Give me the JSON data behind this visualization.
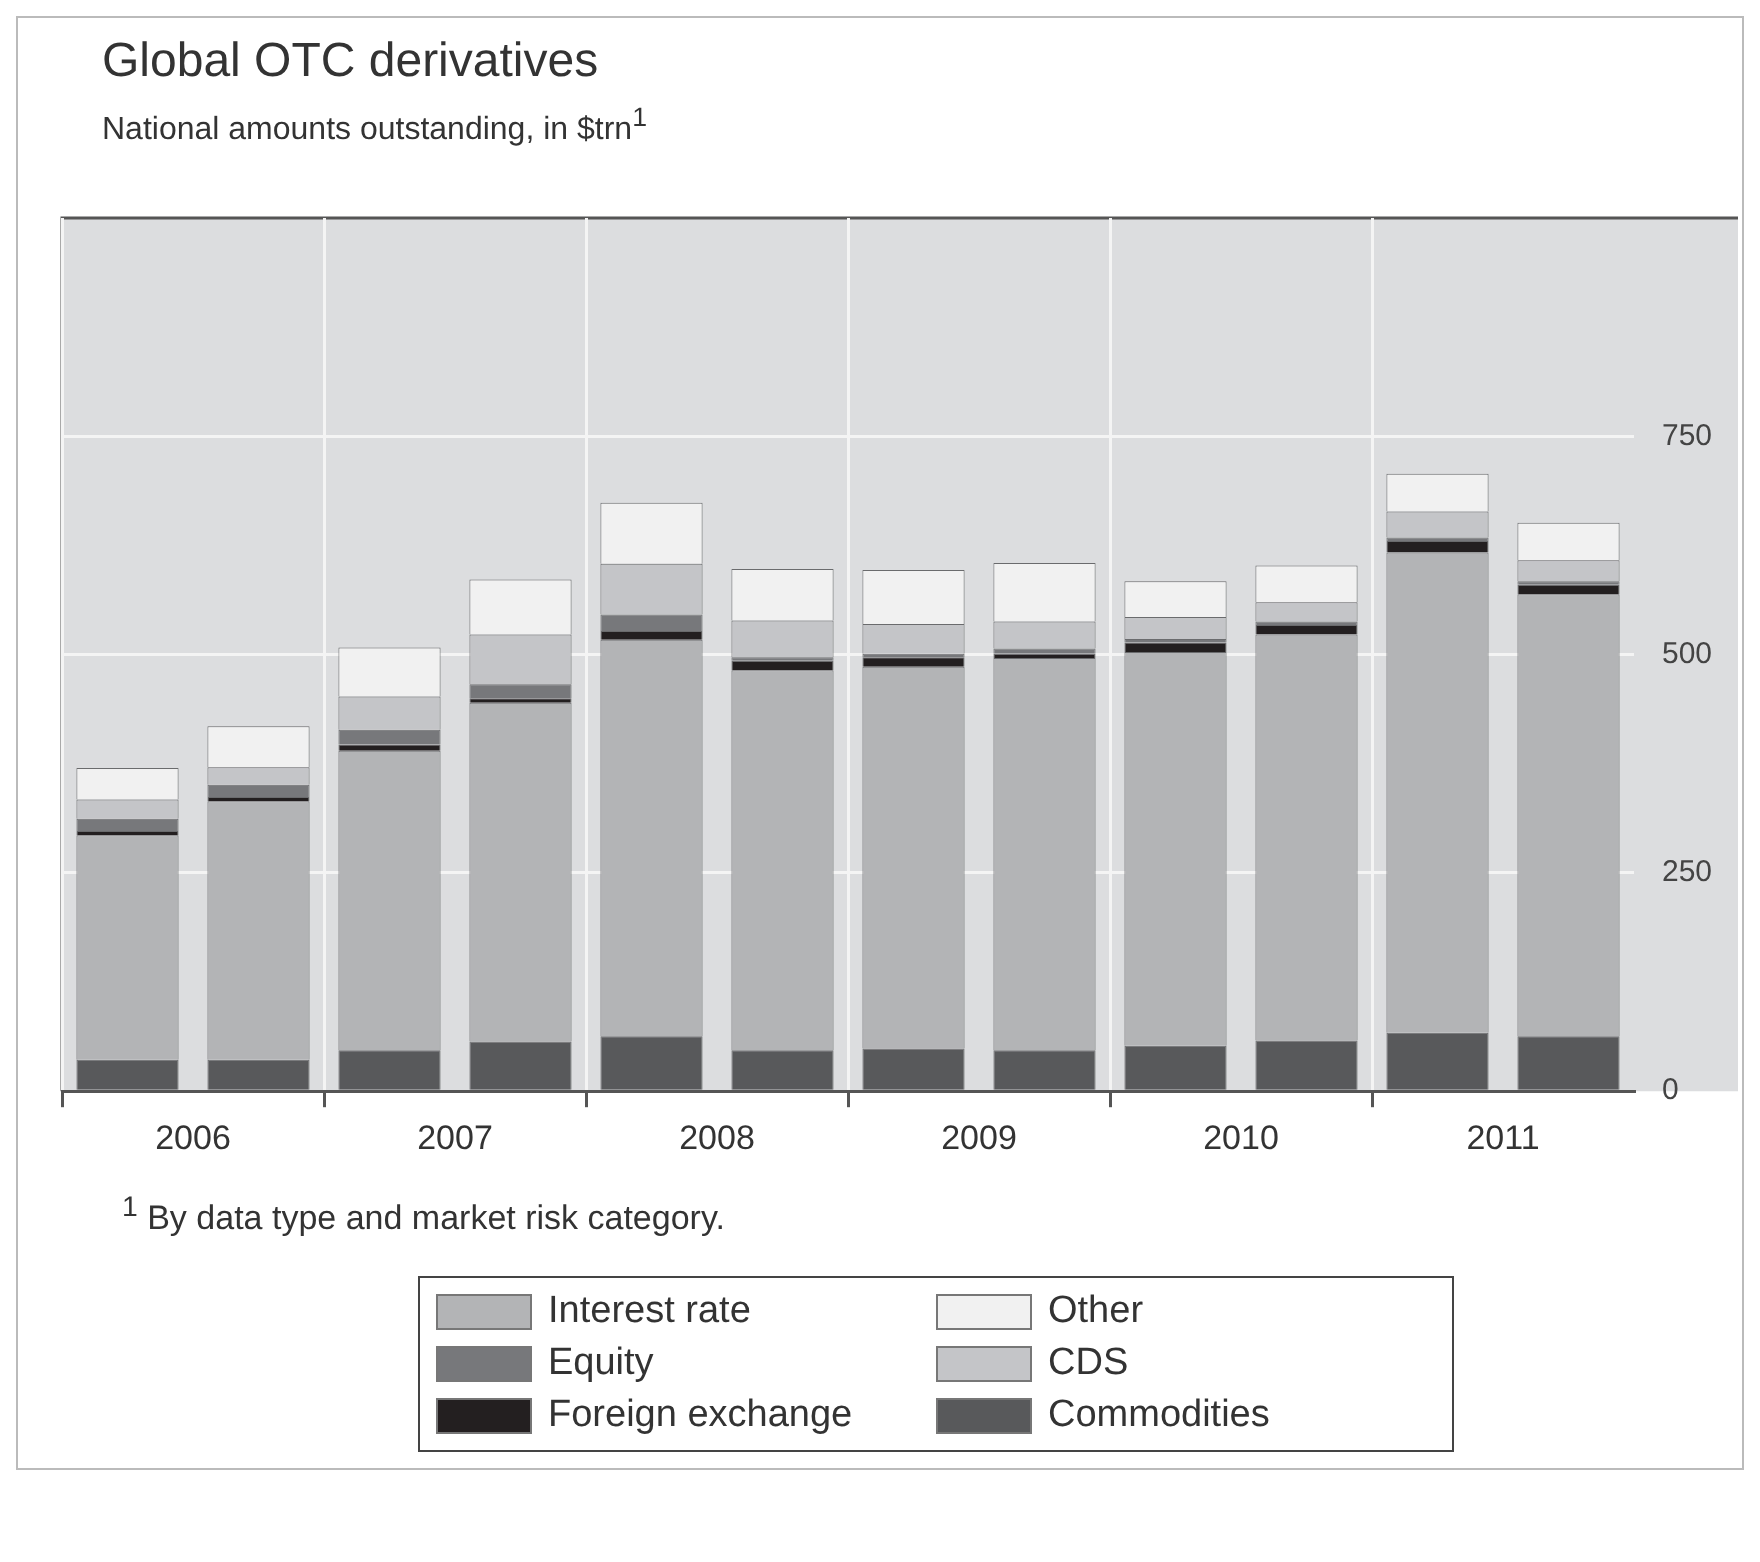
{
  "chart_data": {
    "type": "bar",
    "title": "Global OTC derivatives",
    "subtitle": "National amounts outstanding, in $trn$^{1}$",
    "categories": [
      "2006",
      null,
      "2007",
      null,
      "2008",
      null,
      "2009",
      null,
      "2010",
      null,
      "2011",
      null
    ],
    "stacked": true,
    "ylim": [
      0,
      1000
    ],
    "yticks": [
      0,
      250,
      500,
      750
    ],
    "grid": true,
    "legend": "bottom",
    "annotations": [
      "$^{1}$ By data type and market risk category."
    ],
    "series": [
      {
        "name": "Commodities",
        "color": "#58595b",
        "values": [
          36,
          36,
          47,
          57,
          63,
          47,
          49,
          47,
          52,
          58,
          67,
          63
        ]
      },
      {
        "name": "Interest rate",
        "color": "#b3b4b6",
        "values": [
          257,
          296,
          343,
          388,
          454,
          435,
          437,
          449,
          451,
          465,
          550,
          506
        ]
      },
      {
        "name": "Foreign exchange",
        "color": "#231f20",
        "values": [
          5,
          5,
          7,
          5,
          10,
          11,
          11,
          5,
          11,
          11,
          13,
          11
        ]
      },
      {
        "name": "Equity",
        "color": "#77787b",
        "values": [
          14,
          14,
          17,
          16,
          19,
          4,
          4,
          6,
          4,
          4,
          4,
          4
        ]
      },
      {
        "name": "CDS",
        "color": "#c4c5c8",
        "values": [
          22,
          20,
          38,
          57,
          58,
          42,
          34,
          31,
          25,
          22,
          30,
          24
        ]
      },
      {
        "name": "Other",
        "color": "#f1f1f1",
        "values": [
          36,
          47,
          56,
          63,
          70,
          59,
          62,
          67,
          41,
          42,
          43,
          43
        ]
      }
    ]
  }
}
